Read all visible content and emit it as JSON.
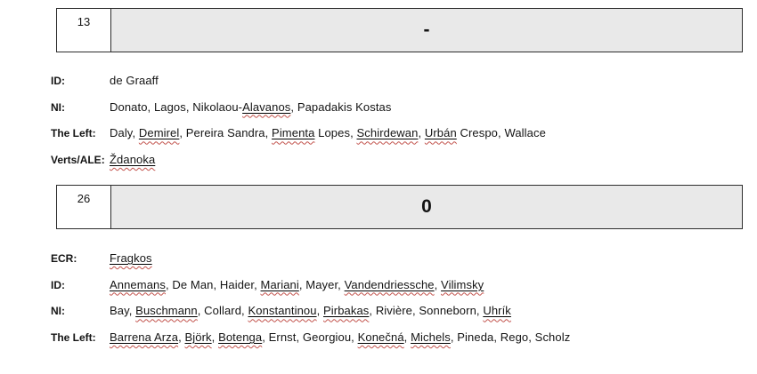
{
  "colors": {
    "cell_fill": "#e9e9e9",
    "cell_border": "#2d2d2d",
    "text": "#141414",
    "correction_underline": "#000000",
    "spellcheck_squiggle": "#c2524c"
  },
  "sections": [
    {
      "tally": {
        "count": "13",
        "symbol": "-"
      },
      "groups": [
        {
          "label": "ID:",
          "segments": [
            {
              "t": "de Graaff",
              "u": false
            }
          ]
        },
        {
          "label": "NI:",
          "segments": [
            {
              "t": "Donato, Lagos, Nikolaou-",
              "u": false
            },
            {
              "t": "Alavanos",
              "u": true
            },
            {
              "t": ", Papadakis Kostas",
              "u": false
            }
          ]
        },
        {
          "label": "The Left:",
          "segments": [
            {
              "t": "Daly, ",
              "u": false
            },
            {
              "t": "Demirel",
              "u": true
            },
            {
              "t": ", Pereira Sandra, ",
              "u": false
            },
            {
              "t": "Pimenta",
              "u": true
            },
            {
              "t": " Lopes, ",
              "u": false
            },
            {
              "t": "Schirdewan",
              "u": true
            },
            {
              "t": ", ",
              "u": false
            },
            {
              "t": "Urbán",
              "u": true
            },
            {
              "t": " Crespo, Wallace",
              "u": false
            }
          ]
        },
        {
          "label": "Verts/ALE:",
          "segments": [
            {
              "t": "Ždanoka",
              "u": true
            }
          ]
        }
      ]
    },
    {
      "tally": {
        "count": "26",
        "symbol": "0"
      },
      "groups": [
        {
          "label": "ECR:",
          "segments": [
            {
              "t": "Fragkos",
              "u": true
            }
          ]
        },
        {
          "label": "ID:",
          "segments": [
            {
              "t": "Annemans",
              "u": true
            },
            {
              "t": ", De Man, Haider, ",
              "u": false
            },
            {
              "t": "Mariani",
              "u": true
            },
            {
              "t": ", Mayer, ",
              "u": false
            },
            {
              "t": "Vandendriessche",
              "u": true
            },
            {
              "t": ", ",
              "u": false
            },
            {
              "t": "Vilimsky",
              "u": true
            }
          ]
        },
        {
          "label": "NI:",
          "segments": [
            {
              "t": "Bay, ",
              "u": false
            },
            {
              "t": "Buschmann",
              "u": true
            },
            {
              "t": ", Collard, ",
              "u": false
            },
            {
              "t": "Konstantinou",
              "u": true
            },
            {
              "t": ", ",
              "u": false
            },
            {
              "t": "Pirbakas",
              "u": true
            },
            {
              "t": ", Rivière, Sonneborn, ",
              "u": false
            },
            {
              "t": "Uhrík",
              "u": true
            }
          ]
        },
        {
          "label": "The Left:",
          "segments": [
            {
              "t": "Barrena Arza",
              "u": true
            },
            {
              "t": ", ",
              "u": false
            },
            {
              "t": "Björk",
              "u": true
            },
            {
              "t": ", ",
              "u": false
            },
            {
              "t": "Botenga",
              "u": true
            },
            {
              "t": ", Ernst, Georgiou, ",
              "u": false
            },
            {
              "t": "Konečná",
              "u": true
            },
            {
              "t": ", ",
              "u": false
            },
            {
              "t": "Michels",
              "u": true
            },
            {
              "t": ", Pineda, Rego, Scholz",
              "u": false
            }
          ]
        }
      ]
    }
  ]
}
